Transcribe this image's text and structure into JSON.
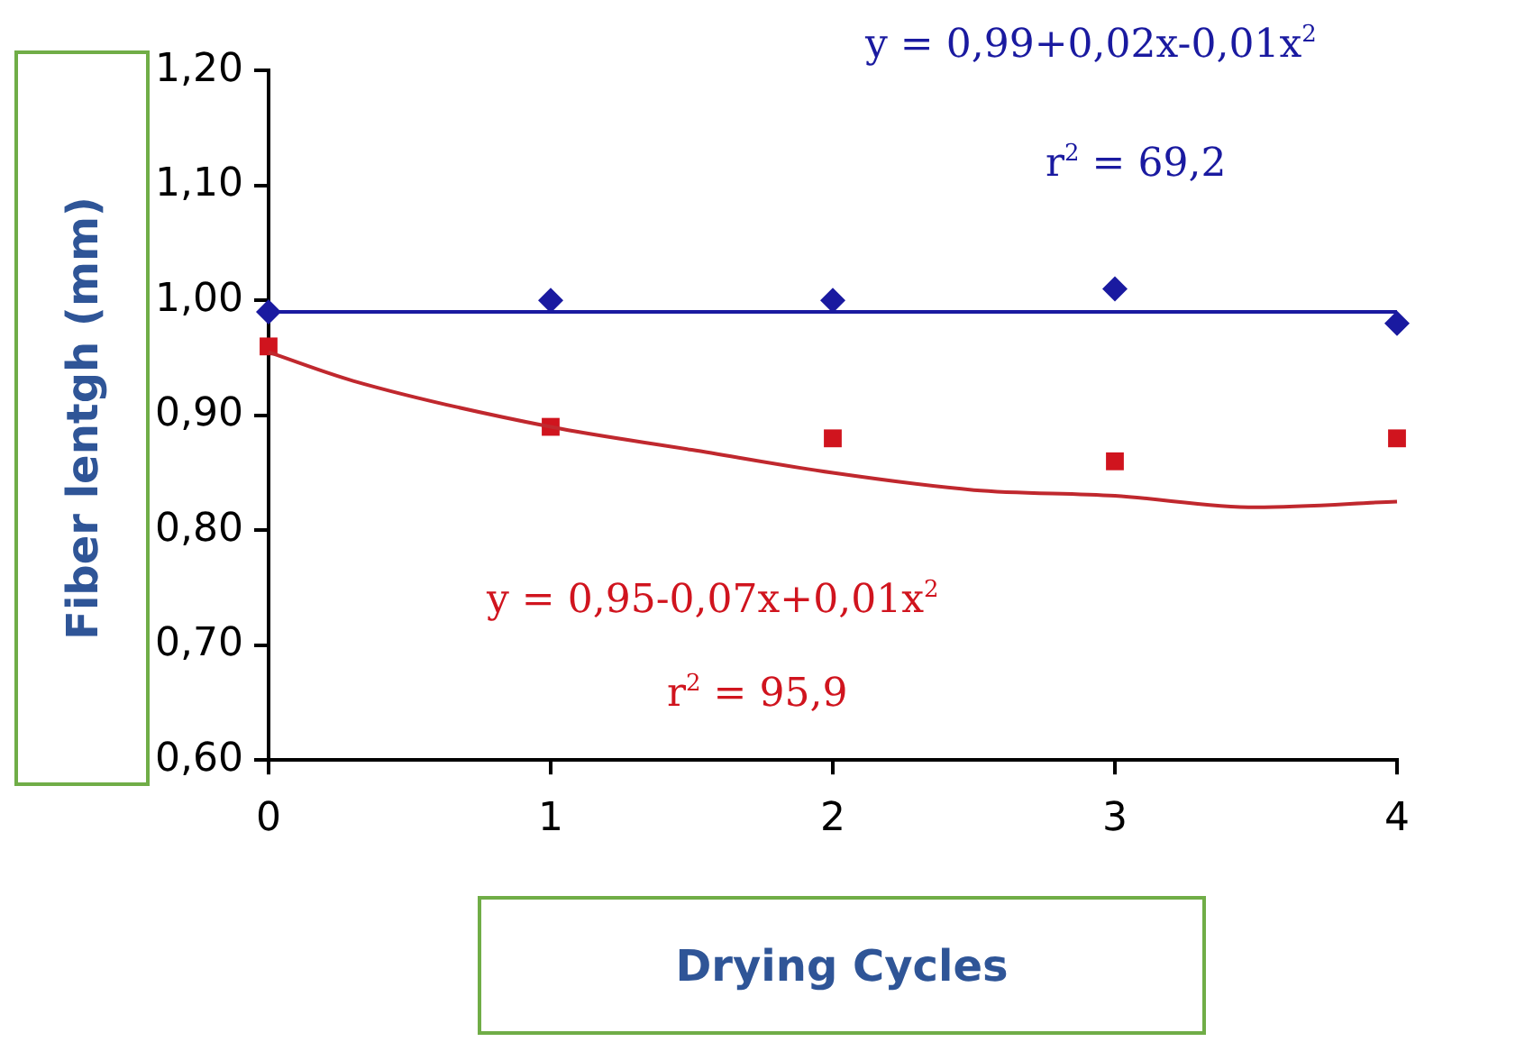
{
  "chart_data": {
    "type": "scatter",
    "xlabel": "Drying Cycles",
    "ylabel": "Fiber lentgh (mm)",
    "x": [
      0,
      1,
      2,
      3,
      4
    ],
    "series": [
      {
        "type": "scatter",
        "color": "#1a1aa0",
        "marker": "diamond",
        "values": [
          0.99,
          1.0,
          1.0,
          1.01,
          0.98
        ]
      },
      {
        "type": "scatter",
        "color": "#d0141e",
        "marker": "square",
        "values": [
          0.96,
          0.89,
          0.88,
          0.86,
          0.88
        ]
      },
      {
        "type": "line",
        "color": "#1a1aa0",
        "marker": "none",
        "x": [
          0,
          4
        ],
        "values": [
          0.99,
          0.99
        ]
      },
      {
        "type": "line",
        "color": "#c0282e",
        "marker": "none",
        "x": [
          0,
          0.3,
          1,
          1.5,
          2,
          2.5,
          3,
          3.5,
          4
        ],
        "values": [
          0.955,
          0.93,
          0.89,
          0.87,
          0.85,
          0.835,
          0.83,
          0.82,
          0.825
        ]
      }
    ],
    "annotations": [
      "y = 0,99+0,02x-0,01x$^{2}$",
      "r$^{2}$ = 69,2",
      "y = 0,95-0,07x+0,01x$^{2}$",
      "r$^{2}$ = 95,9"
    ],
    "xlim": [
      0,
      4
    ],
    "xticks": [
      0,
      1,
      2,
      3,
      4
    ],
    "ylim": [
      0.6,
      1.2
    ],
    "yticks": [
      {
        "value": 0.6,
        "label": "0,60"
      },
      {
        "value": 0.7,
        "label": "0,70"
      },
      {
        "value": 0.8,
        "label": "0,80"
      },
      {
        "value": 0.9,
        "label": "0,90"
      },
      {
        "value": 1.0,
        "label": "1,00"
      },
      {
        "value": 1.1,
        "label": "1,10"
      },
      {
        "value": 1.2,
        "label": "1,20"
      }
    ],
    "grid": false,
    "legend": false
  }
}
